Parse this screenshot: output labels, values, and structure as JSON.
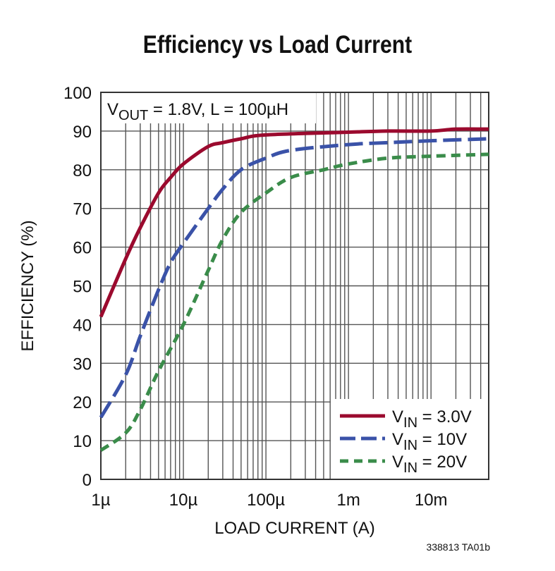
{
  "chart_data": {
    "type": "line",
    "title": "Efficiency vs Load Current",
    "xlabel": "LOAD CURRENT (A)",
    "ylabel": "EFFICIENCY (%)",
    "x_scale": "log",
    "xlim": [
      1e-06,
      0.05
    ],
    "ylim": [
      0,
      100
    ],
    "grid": true,
    "x_ticks": [
      {
        "value": 1e-06,
        "label": "1µ"
      },
      {
        "value": 1e-05,
        "label": "10µ"
      },
      {
        "value": 0.0001,
        "label": "100µ"
      },
      {
        "value": 0.001,
        "label": "1m"
      },
      {
        "value": 0.01,
        "label": "10m"
      }
    ],
    "y_ticks": [
      "0",
      "10",
      "20",
      "30",
      "40",
      "50",
      "60",
      "70",
      "80",
      "90",
      "100"
    ],
    "annotation": {
      "prefix": "V",
      "sub": "OUT",
      "suffix": " = 1.8V, L = 100µH"
    },
    "legend_position": "bottom-right",
    "series": [
      {
        "name": "VIN = 3.0V",
        "legend": {
          "prefix": "V",
          "sub": "IN",
          "suffix": " = 3.0V"
        },
        "color": "#9b0a2e",
        "style": "solid",
        "x": [
          1e-06,
          2e-06,
          3e-06,
          5e-06,
          7e-06,
          1e-05,
          2e-05,
          3e-05,
          5e-05,
          0.0001,
          0.001,
          0.003,
          0.01,
          0.02,
          0.05
        ],
        "y": [
          42,
          57,
          65,
          74,
          78,
          81.5,
          86,
          87,
          88,
          89,
          89.7,
          90,
          90,
          90.5,
          90.5
        ]
      },
      {
        "name": "VIN = 10V",
        "legend": {
          "prefix": "V",
          "sub": "IN",
          "suffix": " = 10V"
        },
        "color": "#3a52a8",
        "style": "long-dash",
        "x": [
          1e-06,
          2e-06,
          3e-06,
          5e-06,
          7e-06,
          1e-05,
          2e-05,
          3e-05,
          5e-05,
          0.0001,
          0.0002,
          0.001,
          0.003,
          0.01,
          0.05
        ],
        "y": [
          16,
          27,
          37,
          49,
          56,
          61,
          70,
          75,
          80,
          83,
          85,
          86.5,
          87,
          87.5,
          88
        ]
      },
      {
        "name": "VIN = 20V",
        "legend": {
          "prefix": "V",
          "sub": "IN",
          "suffix": " = 20V"
        },
        "color": "#3a8c4a",
        "style": "short-dash",
        "x": [
          1e-06,
          2e-06,
          3e-06,
          5e-06,
          1e-05,
          2e-05,
          3e-05,
          5e-05,
          0.0001,
          0.0002,
          0.0005,
          0.001,
          0.003,
          0.01,
          0.05
        ],
        "y": [
          7.5,
          12,
          18,
          28,
          40,
          54,
          62,
          69,
          74,
          78,
          80,
          81.5,
          83,
          83.5,
          84
        ]
      }
    ]
  },
  "figure_code": "338813 TA01b"
}
